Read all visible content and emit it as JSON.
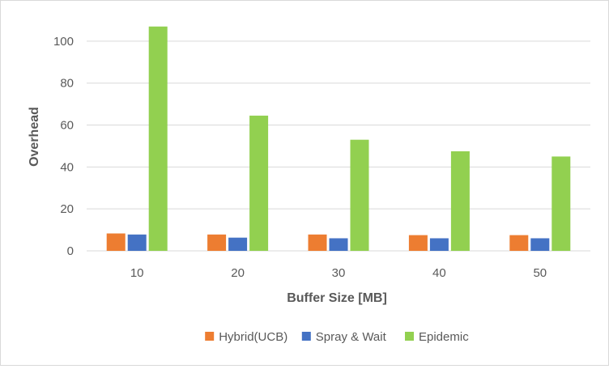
{
  "chart_data": {
    "type": "bar",
    "title": "",
    "xlabel": "Buffer Size [MB]",
    "ylabel": "Overhead",
    "categories": [
      "10",
      "20",
      "30",
      "40",
      "50"
    ],
    "ylim": [
      0,
      110
    ],
    "yticks": [
      0,
      20,
      40,
      60,
      80,
      100
    ],
    "grid": true,
    "legend_position": "bottom",
    "series": [
      {
        "name": "Hybrid(UCB)",
        "color": "#ed7d31",
        "values": [
          8.3,
          7.8,
          7.8,
          7.5,
          7.5
        ]
      },
      {
        "name": "Spray & Wait",
        "color": "#4472c4",
        "values": [
          7.8,
          6.3,
          6.0,
          6.0,
          6.0
        ]
      },
      {
        "name": "Epidemic",
        "color": "#92d050",
        "values": [
          107,
          64.5,
          53,
          47.5,
          45
        ]
      }
    ]
  }
}
